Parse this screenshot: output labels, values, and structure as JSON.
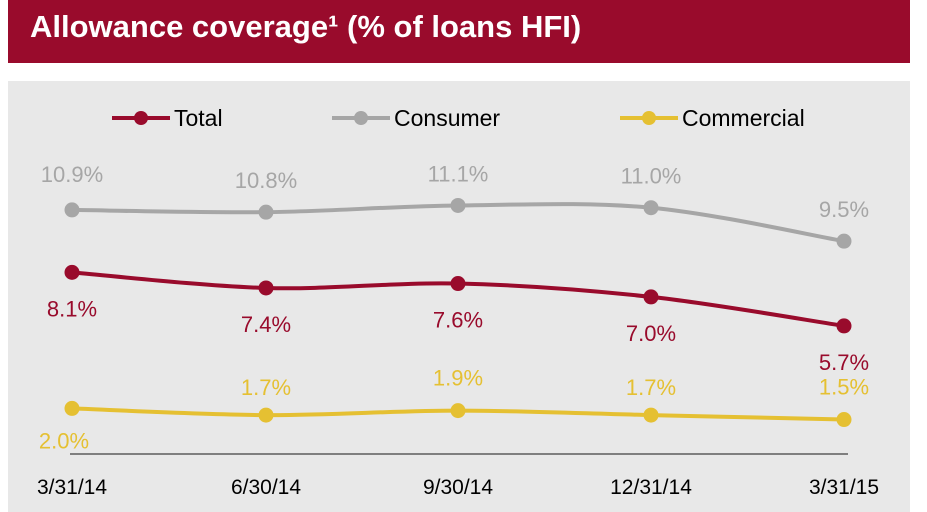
{
  "header": {
    "title": "Allowance coverage¹ (% of loans HFI)"
  },
  "chart_data": {
    "type": "line",
    "title": "Allowance coverage¹ (% of loans HFI)",
    "categories": [
      "3/31/14",
      "6/30/14",
      "9/30/14",
      "12/31/14",
      "3/31/15"
    ],
    "ylim": [
      0,
      12
    ],
    "grid": false,
    "legend": "top",
    "value_suffix": "%",
    "series": [
      {
        "name": "Total",
        "color": "#990b2c",
        "values": [
          8.1,
          7.4,
          7.6,
          7.0,
          5.7
        ],
        "labels": [
          "8.1%",
          "7.4%",
          "7.6%",
          "7.0%",
          "5.7%"
        ]
      },
      {
        "name": "Consumer",
        "color": "#a6a6a6",
        "values": [
          10.9,
          10.8,
          11.1,
          11.0,
          9.5
        ],
        "labels": [
          "10.9%",
          "10.8%",
          "11.1%",
          "11.0%",
          "9.5%"
        ]
      },
      {
        "name": "Commercial",
        "color": "#e5c032",
        "values": [
          2.0,
          1.7,
          1.9,
          1.7,
          1.5
        ],
        "labels": [
          "2.0%",
          "1.7%",
          "1.9%",
          "1.7%",
          "1.5%"
        ]
      }
    ]
  }
}
